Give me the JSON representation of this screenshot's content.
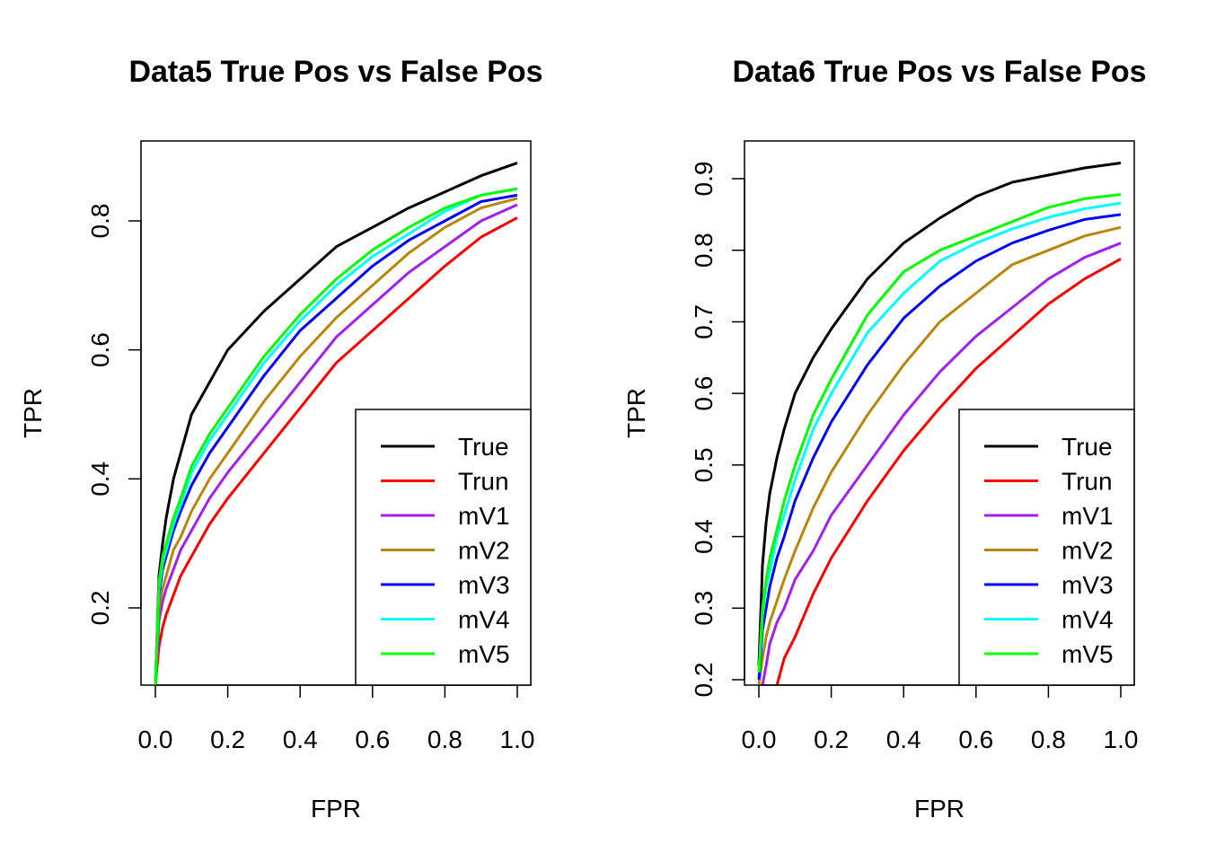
{
  "colors": {
    "True": "#000000",
    "Trun": "#ff0000",
    "mV1": "#a020f0",
    "mV2": "#b8860b",
    "mV3": "#0000ff",
    "mV4": "#00ffff",
    "mV5": "#00ff00"
  },
  "chart_data": [
    {
      "type": "line",
      "title": "Data5 True Pos vs False Pos",
      "xlabel": "FPR",
      "ylabel": "TPR",
      "xlim": [
        0,
        1
      ],
      "ylim": [
        0.08,
        0.91
      ],
      "xticks": [
        "0.0",
        "0.2",
        "0.4",
        "0.6",
        "0.8",
        "1.0"
      ],
      "yticks": [
        "0.2",
        "0.4",
        "0.6",
        "0.8"
      ],
      "legend_position": "bottom-right",
      "x": [
        0,
        0.01,
        0.02,
        0.03,
        0.05,
        0.07,
        0.1,
        0.15,
        0.2,
        0.3,
        0.4,
        0.5,
        0.6,
        0.7,
        0.8,
        0.9,
        1.0
      ],
      "series": [
        {
          "name": "True",
          "values": [
            0.08,
            0.25,
            0.3,
            0.34,
            0.4,
            0.44,
            0.5,
            0.55,
            0.6,
            0.66,
            0.71,
            0.76,
            0.79,
            0.82,
            0.845,
            0.87,
            0.89
          ]
        },
        {
          "name": "Trun",
          "values": [
            0.08,
            0.14,
            0.17,
            0.19,
            0.22,
            0.25,
            0.28,
            0.33,
            0.37,
            0.44,
            0.51,
            0.58,
            0.63,
            0.68,
            0.73,
            0.775,
            0.805
          ]
        },
        {
          "name": "mV1",
          "values": [
            0.08,
            0.18,
            0.21,
            0.23,
            0.26,
            0.29,
            0.32,
            0.37,
            0.41,
            0.48,
            0.55,
            0.62,
            0.67,
            0.72,
            0.76,
            0.8,
            0.825
          ]
        },
        {
          "name": "mV2",
          "values": [
            0.08,
            0.2,
            0.23,
            0.25,
            0.29,
            0.31,
            0.35,
            0.4,
            0.44,
            0.52,
            0.59,
            0.65,
            0.7,
            0.75,
            0.79,
            0.82,
            0.835
          ]
        },
        {
          "name": "mV3",
          "values": [
            0.08,
            0.22,
            0.26,
            0.28,
            0.32,
            0.35,
            0.39,
            0.44,
            0.48,
            0.56,
            0.63,
            0.68,
            0.73,
            0.77,
            0.8,
            0.83,
            0.84
          ]
        },
        {
          "name": "mV4",
          "values": [
            0.08,
            0.23,
            0.27,
            0.29,
            0.33,
            0.36,
            0.41,
            0.46,
            0.5,
            0.58,
            0.645,
            0.7,
            0.745,
            0.78,
            0.815,
            0.84,
            0.85
          ]
        },
        {
          "name": "mV5",
          "values": [
            0.08,
            0.24,
            0.28,
            0.3,
            0.34,
            0.37,
            0.42,
            0.47,
            0.51,
            0.59,
            0.655,
            0.71,
            0.755,
            0.79,
            0.82,
            0.84,
            0.85
          ]
        }
      ]
    },
    {
      "type": "line",
      "title": "Data6 True Pos vs False Pos",
      "xlabel": "FPR",
      "ylabel": "TPR",
      "xlim": [
        0,
        1
      ],
      "ylim": [
        0.19,
        0.95
      ],
      "xticks": [
        "0.0",
        "0.2",
        "0.4",
        "0.6",
        "0.8",
        "1.0"
      ],
      "yticks": [
        "0.2",
        "0.3",
        "0.4",
        "0.5",
        "0.6",
        "0.7",
        "0.8",
        "0.9"
      ],
      "legend_position": "bottom-right",
      "x": [
        0,
        0.01,
        0.02,
        0.03,
        0.05,
        0.07,
        0.1,
        0.15,
        0.2,
        0.3,
        0.4,
        0.5,
        0.6,
        0.7,
        0.8,
        0.9,
        1.0
      ],
      "series": [
        {
          "name": "True",
          "values": [
            0.22,
            0.36,
            0.42,
            0.46,
            0.51,
            0.55,
            0.6,
            0.65,
            0.69,
            0.76,
            0.81,
            0.845,
            0.875,
            0.895,
            0.905,
            0.915,
            0.922
          ]
        },
        {
          "name": "Trun",
          "values": [
            null,
            null,
            null,
            null,
            0.19,
            0.23,
            0.26,
            0.32,
            0.37,
            0.45,
            0.52,
            0.58,
            0.635,
            0.68,
            0.725,
            0.76,
            0.788
          ]
        },
        {
          "name": "mV1",
          "values": [
            null,
            0.19,
            0.22,
            0.25,
            0.28,
            0.3,
            0.34,
            0.38,
            0.43,
            0.5,
            0.57,
            0.63,
            0.68,
            0.72,
            0.76,
            0.79,
            0.81
          ]
        },
        {
          "name": "mV2",
          "values": [
            0.19,
            0.23,
            0.26,
            0.28,
            0.31,
            0.34,
            0.38,
            0.44,
            0.49,
            0.57,
            0.64,
            0.7,
            0.74,
            0.78,
            0.8,
            0.82,
            0.832
          ]
        },
        {
          "name": "mV3",
          "values": [
            0.2,
            0.27,
            0.3,
            0.33,
            0.37,
            0.4,
            0.45,
            0.51,
            0.56,
            0.64,
            0.705,
            0.75,
            0.785,
            0.81,
            0.828,
            0.843,
            0.85
          ]
        },
        {
          "name": "mV4",
          "values": [
            0.21,
            0.29,
            0.33,
            0.35,
            0.4,
            0.43,
            0.48,
            0.55,
            0.6,
            0.685,
            0.74,
            0.785,
            0.81,
            0.83,
            0.846,
            0.858,
            0.866
          ]
        },
        {
          "name": "mV5",
          "values": [
            0.21,
            0.3,
            0.34,
            0.37,
            0.41,
            0.45,
            0.5,
            0.57,
            0.62,
            0.71,
            0.77,
            0.8,
            0.82,
            0.84,
            0.86,
            0.872,
            0.878
          ]
        }
      ]
    }
  ]
}
